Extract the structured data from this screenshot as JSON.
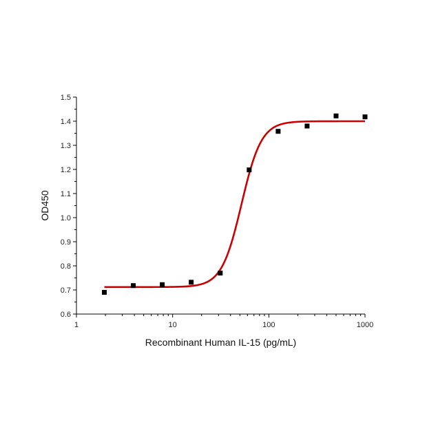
{
  "chart_data": {
    "type": "scatter",
    "title": "",
    "xlabel": "Recombinant Human IL-15 (pg/mL)",
    "ylabel": "OD450",
    "x_scale": "log",
    "xlim": [
      1,
      1000
    ],
    "ylim": [
      0.6,
      1.5
    ],
    "x_ticks": [
      1,
      10,
      100,
      1000
    ],
    "x_tick_labels": [
      "1",
      "10",
      "100",
      "1000"
    ],
    "y_ticks": [
      0.6,
      0.7,
      0.8,
      0.9,
      1.0,
      1.1,
      1.2,
      1.3,
      1.4,
      1.5
    ],
    "y_tick_labels": [
      "0.6",
      "0.7",
      "0.8",
      "0.9",
      "1.0",
      "1.1",
      "1.2",
      "1.3",
      "1.4",
      "1.5"
    ],
    "grid": false,
    "legend": false,
    "series": [
      {
        "kind": "points",
        "color": "#000000",
        "marker": "square",
        "x": [
          1.95,
          3.9,
          7.8,
          15.6,
          31.25,
          62.5,
          125,
          250,
          500,
          1000
        ],
        "y": [
          0.69,
          0.718,
          0.722,
          0.732,
          0.77,
          1.198,
          1.358,
          1.38,
          1.422,
          1.418
        ]
      },
      {
        "kind": "fitted-curve",
        "color": "#cc0000",
        "model": "4PL",
        "bottom": 0.712,
        "top": 1.4,
        "ec50": 52,
        "hill": 4.2,
        "x_range": [
          1.95,
          1000
        ]
      }
    ]
  }
}
